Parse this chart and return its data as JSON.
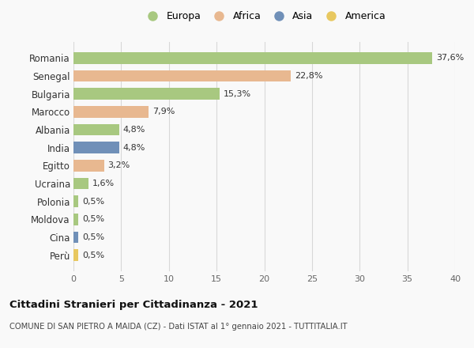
{
  "countries": [
    "Romania",
    "Senegal",
    "Bulgaria",
    "Marocco",
    "Albania",
    "India",
    "Egitto",
    "Ucraina",
    "Polonia",
    "Moldova",
    "Cina",
    "Perù"
  ],
  "values": [
    37.6,
    22.8,
    15.3,
    7.9,
    4.8,
    4.8,
    3.2,
    1.6,
    0.5,
    0.5,
    0.5,
    0.5
  ],
  "labels": [
    "37,6%",
    "22,8%",
    "15,3%",
    "7,9%",
    "4,8%",
    "4,8%",
    "3,2%",
    "1,6%",
    "0,5%",
    "0,5%",
    "0,5%",
    "0,5%"
  ],
  "colors": [
    "#a8c880",
    "#e8b890",
    "#a8c880",
    "#e8b890",
    "#a8c880",
    "#7090b8",
    "#e8b890",
    "#a8c880",
    "#a8c880",
    "#a8c880",
    "#7090b8",
    "#e8c860"
  ],
  "legend": [
    {
      "label": "Europa",
      "color": "#a8c880"
    },
    {
      "label": "Africa",
      "color": "#e8b890"
    },
    {
      "label": "Asia",
      "color": "#7090b8"
    },
    {
      "label": "America",
      "color": "#e8c860"
    }
  ],
  "xlim": [
    0,
    40
  ],
  "xticks": [
    0,
    5,
    10,
    15,
    20,
    25,
    30,
    35,
    40
  ],
  "title": "Cittadini Stranieri per Cittadinanza - 2021",
  "subtitle": "COMUNE DI SAN PIETRO A MAIDA (CZ) - Dati ISTAT al 1° gennaio 2021 - TUTTITALIA.IT",
  "bg_color": "#f9f9f9",
  "grid_color": "#d8d8d8"
}
